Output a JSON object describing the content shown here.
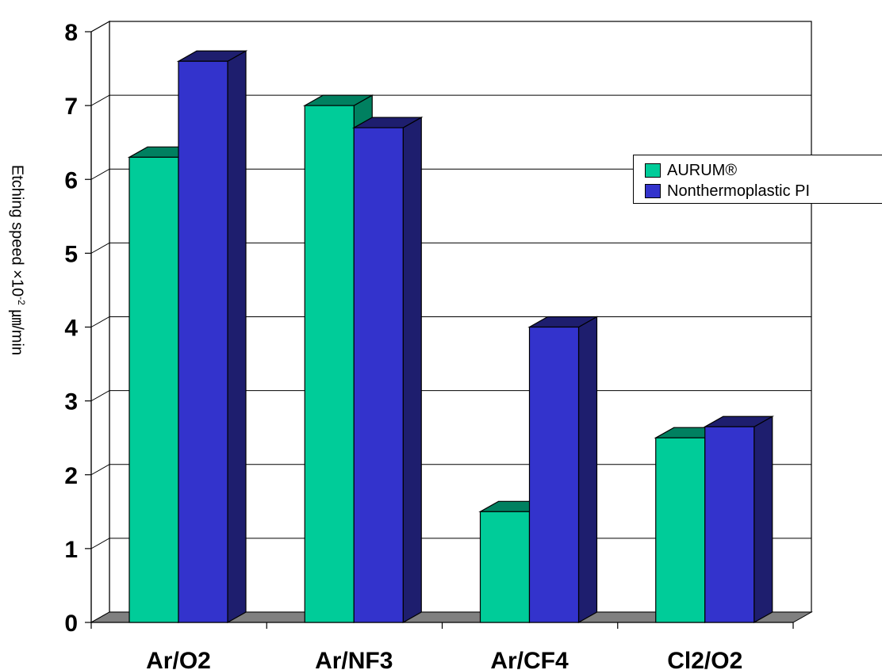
{
  "chart_data": {
    "type": "bar",
    "title": "",
    "xlabel": "",
    "ylabel": {
      "prefix": "Etching speed ×10",
      "exponent": "-2",
      "suffix": " ㎛/min"
    },
    "categories": [
      "Ar/O2",
      "Ar/NF3",
      "Ar/CF4",
      "Cl2/O2"
    ],
    "series": [
      {
        "name": "AURUM®",
        "values": [
          6.3,
          7.0,
          1.5,
          2.5
        ],
        "color": "#00CC99"
      },
      {
        "name": "Nonthermoplastic PI",
        "values": [
          7.6,
          6.7,
          4.0,
          2.65
        ],
        "color": "#3333CC"
      }
    ],
    "ylim": [
      0,
      8
    ],
    "yticks": [
      "0",
      "1",
      "2",
      "3",
      "4",
      "5",
      "6",
      "7",
      "8"
    ],
    "grid": true,
    "legend_position": "right",
    "three_d": true
  }
}
